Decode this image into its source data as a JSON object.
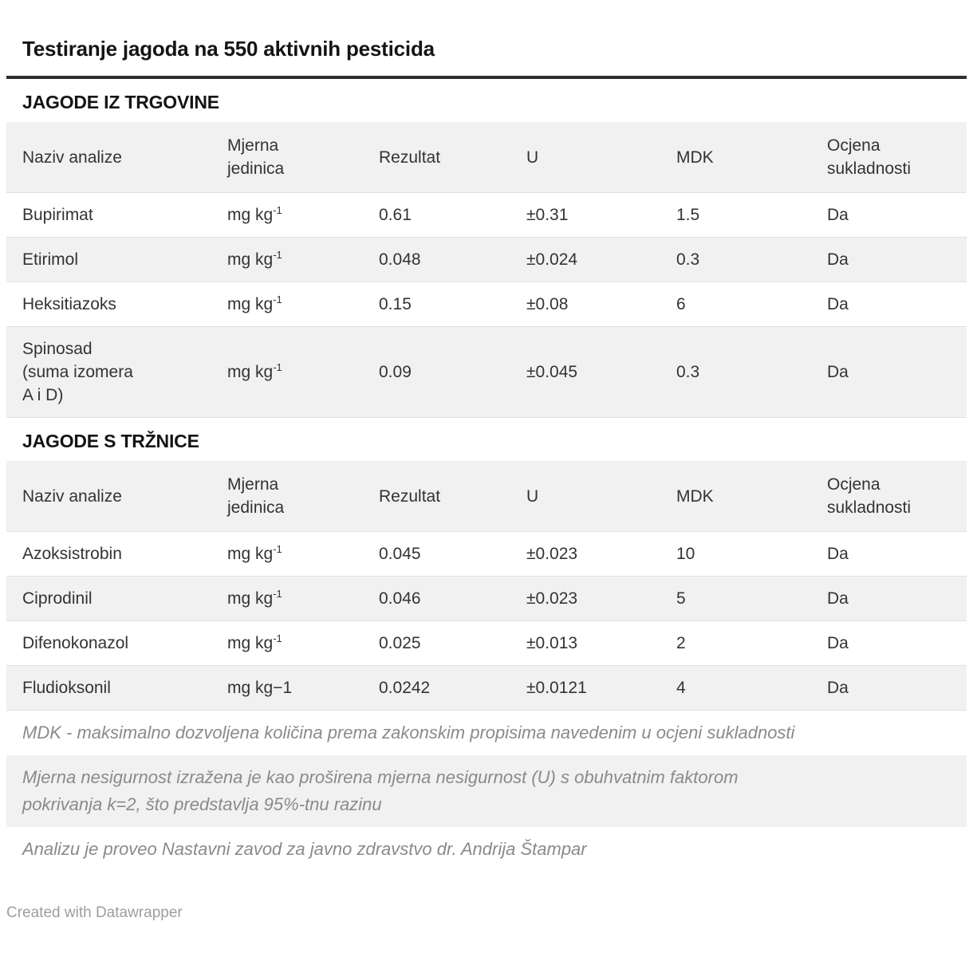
{
  "title": "Testiranje jagoda na 550 aktivnih pesticida",
  "chart_data": [
    {
      "type": "table",
      "heading": "JAGODE IZ TRGOVINE",
      "columns": [
        "Naziv analize",
        "Mjerna\njedinica",
        "Rezultat",
        "U",
        "MDK",
        "Ocjena\nsukladnosti"
      ],
      "rows": [
        {
          "name": "Bupirimat",
          "unit": "mg kg",
          "unit_sup": "-1",
          "result": 0.61,
          "u": "±0.31",
          "mdk": 1.5,
          "ocjena": "Da"
        },
        {
          "name": "Etirimol",
          "unit": "mg kg",
          "unit_sup": "-1",
          "result": 0.048,
          "u": "±0.024",
          "mdk": 0.3,
          "ocjena": "Da"
        },
        {
          "name": "Heksitiazoks",
          "unit": "mg kg",
          "unit_sup": "-1",
          "result": 0.15,
          "u": "±0.08",
          "mdk": 6,
          "ocjena": "Da"
        },
        {
          "name": "Spinosad\n(suma izomera\nA i D)",
          "unit": "mg kg",
          "unit_sup": "-1",
          "result": 0.09,
          "u": "±0.045",
          "mdk": 0.3,
          "ocjena": "Da"
        }
      ]
    },
    {
      "type": "table",
      "heading": "JAGODE S TRŽNICE",
      "columns": [
        "Naziv analize",
        "Mjerna\njedinica",
        "Rezultat",
        "U",
        "MDK",
        "Ocjena\nsukladnosti"
      ],
      "rows": [
        {
          "name": "Azoksistrobin",
          "unit": "mg kg",
          "unit_sup": "-1",
          "result": 0.045,
          "u": "±0.023",
          "mdk": 10,
          "ocjena": "Da"
        },
        {
          "name": "Ciprodinil",
          "unit": "mg kg",
          "unit_sup": "-1",
          "result": 0.046,
          "u": "±0.023",
          "mdk": 5,
          "ocjena": "Da"
        },
        {
          "name": "Difenokonazol",
          "unit": "mg kg",
          "unit_sup": "-1",
          "result": 0.025,
          "u": "±0.013",
          "mdk": 2,
          "ocjena": "Da"
        },
        {
          "name": "Fludioksonil",
          "unit": "mg kg−1",
          "unit_sup": "",
          "result": 0.0242,
          "u": "±0.0121",
          "mdk": 4,
          "ocjena": "Da"
        }
      ]
    }
  ],
  "notes": [
    "MDK - maksimalno dozvoljena količina prema zakonskim propisima navedenim u ocjeni sukladnosti",
    "Mjerna nesigurnost izražena je kao proširena mjerna nesigurnost (U) s obuhvatnim faktorom pokrivanja k=2, što predstavlja 95%-tnu razinu",
    "Analizu je proveo Nastavni zavod za javno zdravstvo dr. Andrija Štampar"
  ],
  "footer": "Created with Datawrapper",
  "colors": {
    "rule": "#2e2e2e",
    "stripe": "#f1f1f1",
    "row_border": "#e0e0e0",
    "body_text": "#333333",
    "heading_text": "#141414",
    "note_text": "#8a8a8a",
    "credit_text": "#9e9e9e"
  }
}
